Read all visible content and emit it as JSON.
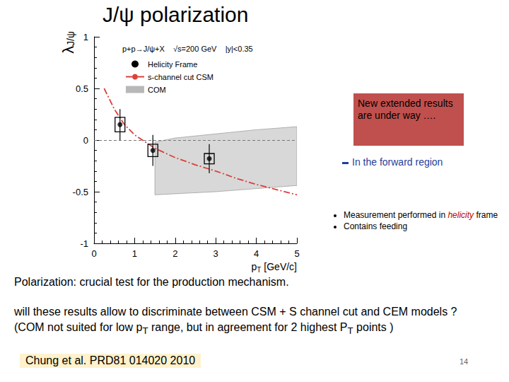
{
  "title": "J/ψ polarization",
  "chart_data": {
    "type": "scatter",
    "header": "p+p→J/ψ+X    √s=200 GeV    |y|<0.35",
    "xlabel": {
      "main": "p",
      "sub": "T",
      "rest": " [GeV/c]"
    },
    "ylabel": {
      "main": "λ",
      "sub": "J/ψ"
    },
    "xlim": [
      0,
      5
    ],
    "xticks": [
      0,
      1,
      2,
      3,
      4,
      5
    ],
    "ylim": [
      -1,
      1
    ],
    "yticks": [
      -1,
      -0.5,
      0,
      0.5,
      1
    ],
    "hline": 0,
    "grid": false,
    "legend": "upper left",
    "series": [
      {
        "name": "Helicity Frame",
        "type": "scatter",
        "color": "#000000",
        "marker": "circle",
        "x": [
          0.64,
          1.45,
          2.84
        ],
        "values": [
          0.15,
          -0.1,
          -0.18
        ],
        "errors": [
          0.15,
          0.15,
          0.14
        ],
        "syst_errors": [
          0.07,
          0.06,
          0.05
        ]
      },
      {
        "name": "s-channel cut CSM",
        "type": "line",
        "color": "#d9413b",
        "line_style": "dashdot",
        "x": [
          0.25,
          0.5,
          0.75,
          1,
          1.5,
          2,
          2.5,
          3,
          3.5,
          4,
          4.5,
          5
        ],
        "values": [
          0.5,
          0.3,
          0.15,
          0.05,
          -0.08,
          -0.17,
          -0.24,
          -0.3,
          -0.37,
          -0.43,
          -0.48,
          -0.53
        ]
      },
      {
        "name": "COM",
        "type": "band",
        "color": "#b8b8b8",
        "x": [
          1.5,
          2,
          3,
          4,
          5
        ],
        "low": [
          -0.53,
          -0.52,
          -0.5,
          -0.47,
          -0.44
        ],
        "high": [
          -0.02,
          0.02,
          0.06,
          0.1,
          0.13
        ]
      }
    ]
  },
  "callout": "New extended results are under way ….",
  "note": "In the forward region",
  "bullets": [
    [
      {
        "text": "Measurement performed in "
      },
      {
        "text": "helicity",
        "em": true
      },
      {
        "text": " frame"
      }
    ],
    [
      {
        "text": "Contains feeding"
      }
    ]
  ],
  "body": [
    [
      {
        "text": "Polarization:  crucial test for the production mechanism."
      }
    ],
    [
      {
        "text": "will these results allow to discriminate  between CSM + S channel cut  and CEM models ?"
      }
    ],
    [
      {
        "text": "(COM not suited for  low  p"
      },
      {
        "text": "T",
        "sub": true
      },
      {
        "text": " range, but in agreement for 2 highest  P"
      },
      {
        "text": "T",
        "sub": true
      },
      {
        "text": " points )"
      }
    ]
  ],
  "reference": "Chung et al. PRD81 014020 2010",
  "page_number": "14"
}
